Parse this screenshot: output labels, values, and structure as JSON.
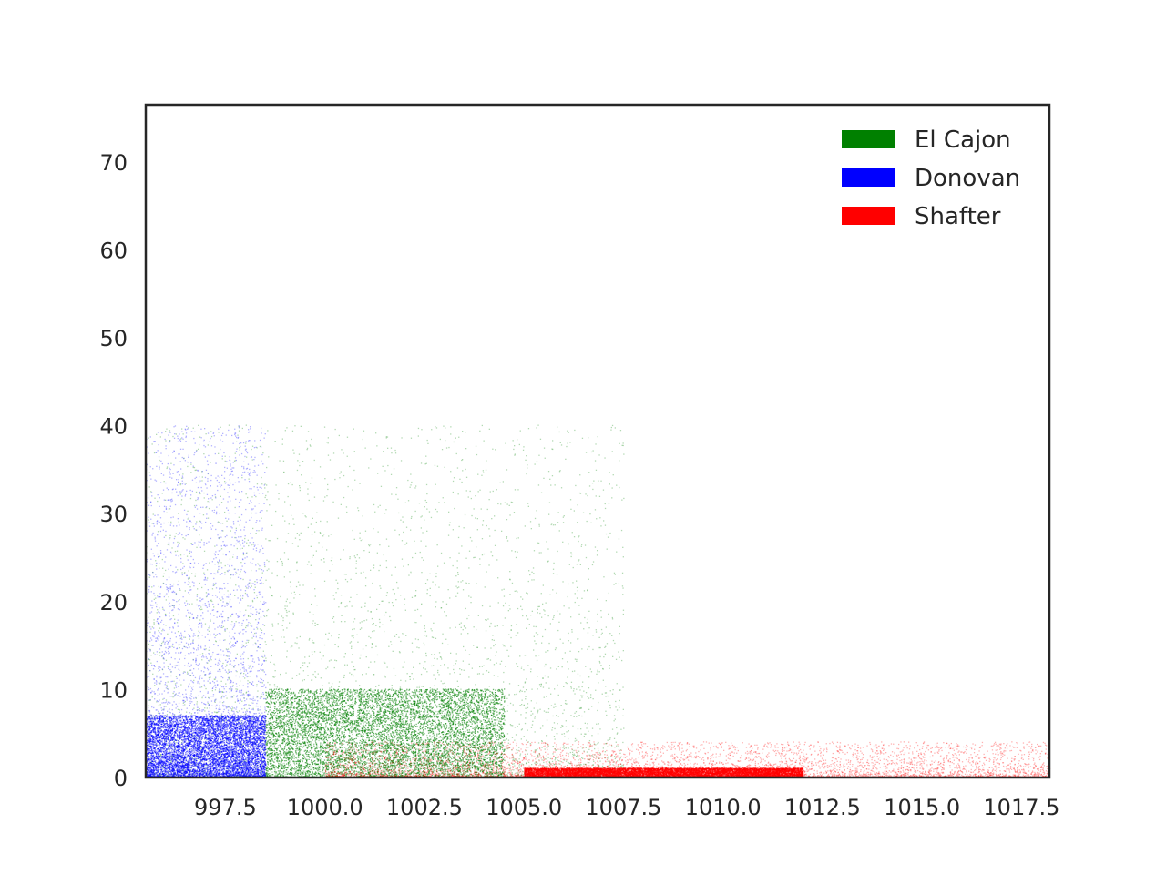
{
  "chart_data": {
    "type": "scatter",
    "title": "",
    "xlabel": "",
    "ylabel": "",
    "xlim": [
      995.5,
      1018.2
    ],
    "ylim": [
      0,
      76.5
    ],
    "grid": false,
    "legend_position": "top-right",
    "x_ticks": [
      997.5,
      1000.0,
      1002.5,
      1005.0,
      1007.5,
      1010.0,
      1012.5,
      1015.0,
      1017.5
    ],
    "x_tick_labels": [
      "997.5",
      "1000.0",
      "1002.5",
      "1005.0",
      "1007.5",
      "1010.0",
      "1012.5",
      "1015.0",
      "1017.5"
    ],
    "y_ticks": [
      0,
      10,
      20,
      30,
      40,
      50,
      60,
      70
    ],
    "y_tick_labels": [
      "0",
      "10",
      "20",
      "30",
      "40",
      "50",
      "60",
      "70"
    ],
    "series": [
      {
        "name": "El Cajon",
        "color": "#008000",
        "x_range": [
          995.5,
          1007.5
        ],
        "y_range": [
          0,
          40
        ],
        "dense_region": {
          "x": [
            998.5,
            1004.5
          ],
          "y": [
            0,
            10
          ]
        },
        "point_count": 12000
      },
      {
        "name": "Donovan",
        "color": "#0000ff",
        "x_range": [
          995.5,
          998.5
        ],
        "y_range": [
          0,
          40
        ],
        "dense_region": {
          "x": [
            995.5,
            998.5
          ],
          "y": [
            0,
            7
          ]
        },
        "point_count": 9000
      },
      {
        "name": "Shafter",
        "color": "#ff0000",
        "x_range": [
          1000.0,
          1018.2
        ],
        "y_range": [
          0,
          4
        ],
        "dense_region": {
          "x": [
            1005.0,
            1012.0
          ],
          "y": [
            0,
            1
          ]
        },
        "point_count": 14000
      }
    ],
    "legend": [
      "El Cajon",
      "Donovan",
      "Shafter"
    ]
  }
}
